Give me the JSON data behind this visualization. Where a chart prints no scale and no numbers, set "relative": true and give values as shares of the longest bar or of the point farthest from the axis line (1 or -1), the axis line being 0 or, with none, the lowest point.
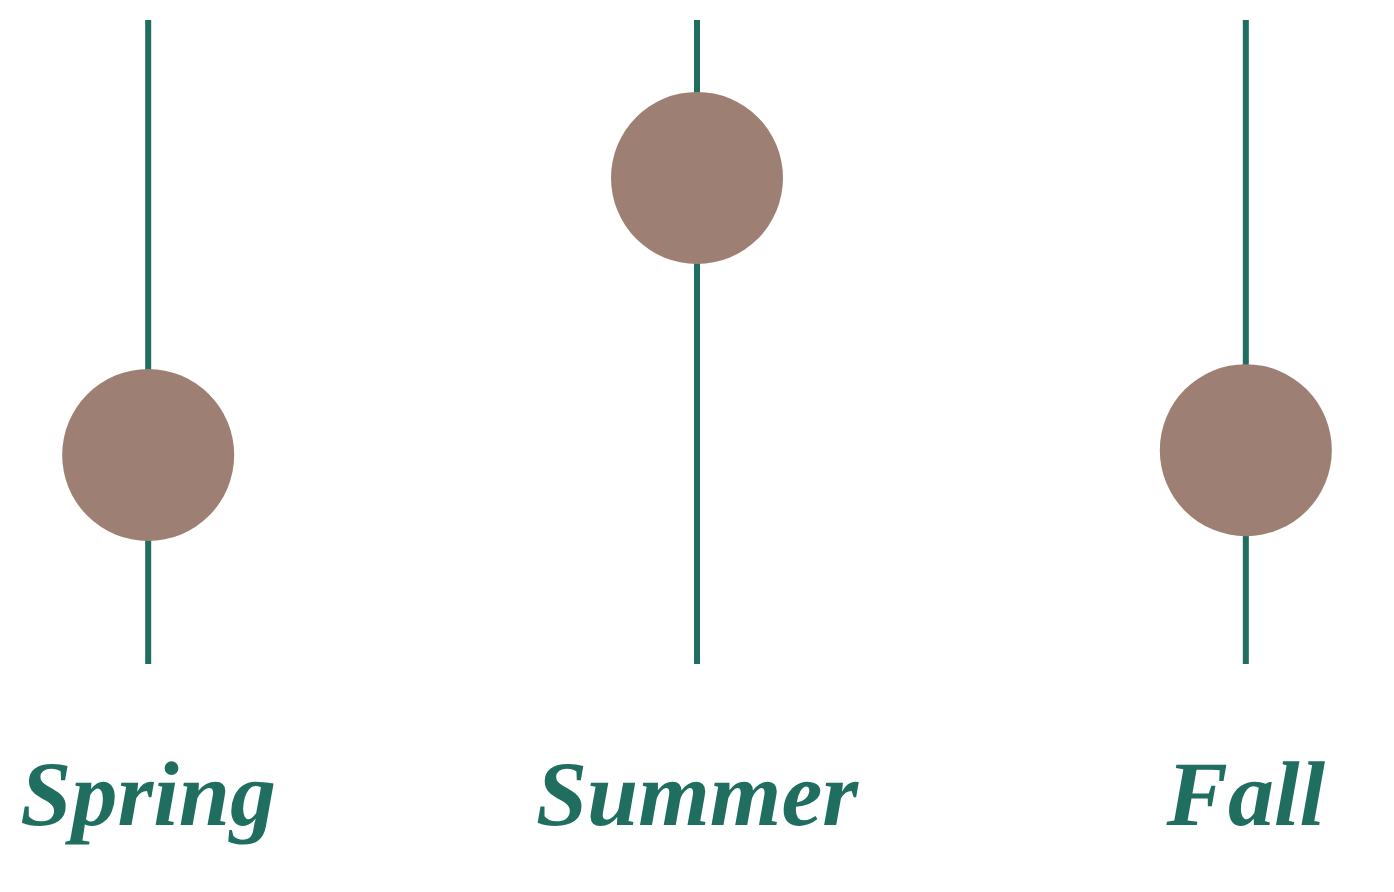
{
  "chart_data": {
    "type": "scatter",
    "categories": [
      "Spring",
      "Summer",
      "Fall"
    ],
    "values": [
      0.43,
      1,
      0.44
    ],
    "color": "#9e7f74",
    "relative": true,
    "grid": "x",
    "marker": "circle"
  }
}
